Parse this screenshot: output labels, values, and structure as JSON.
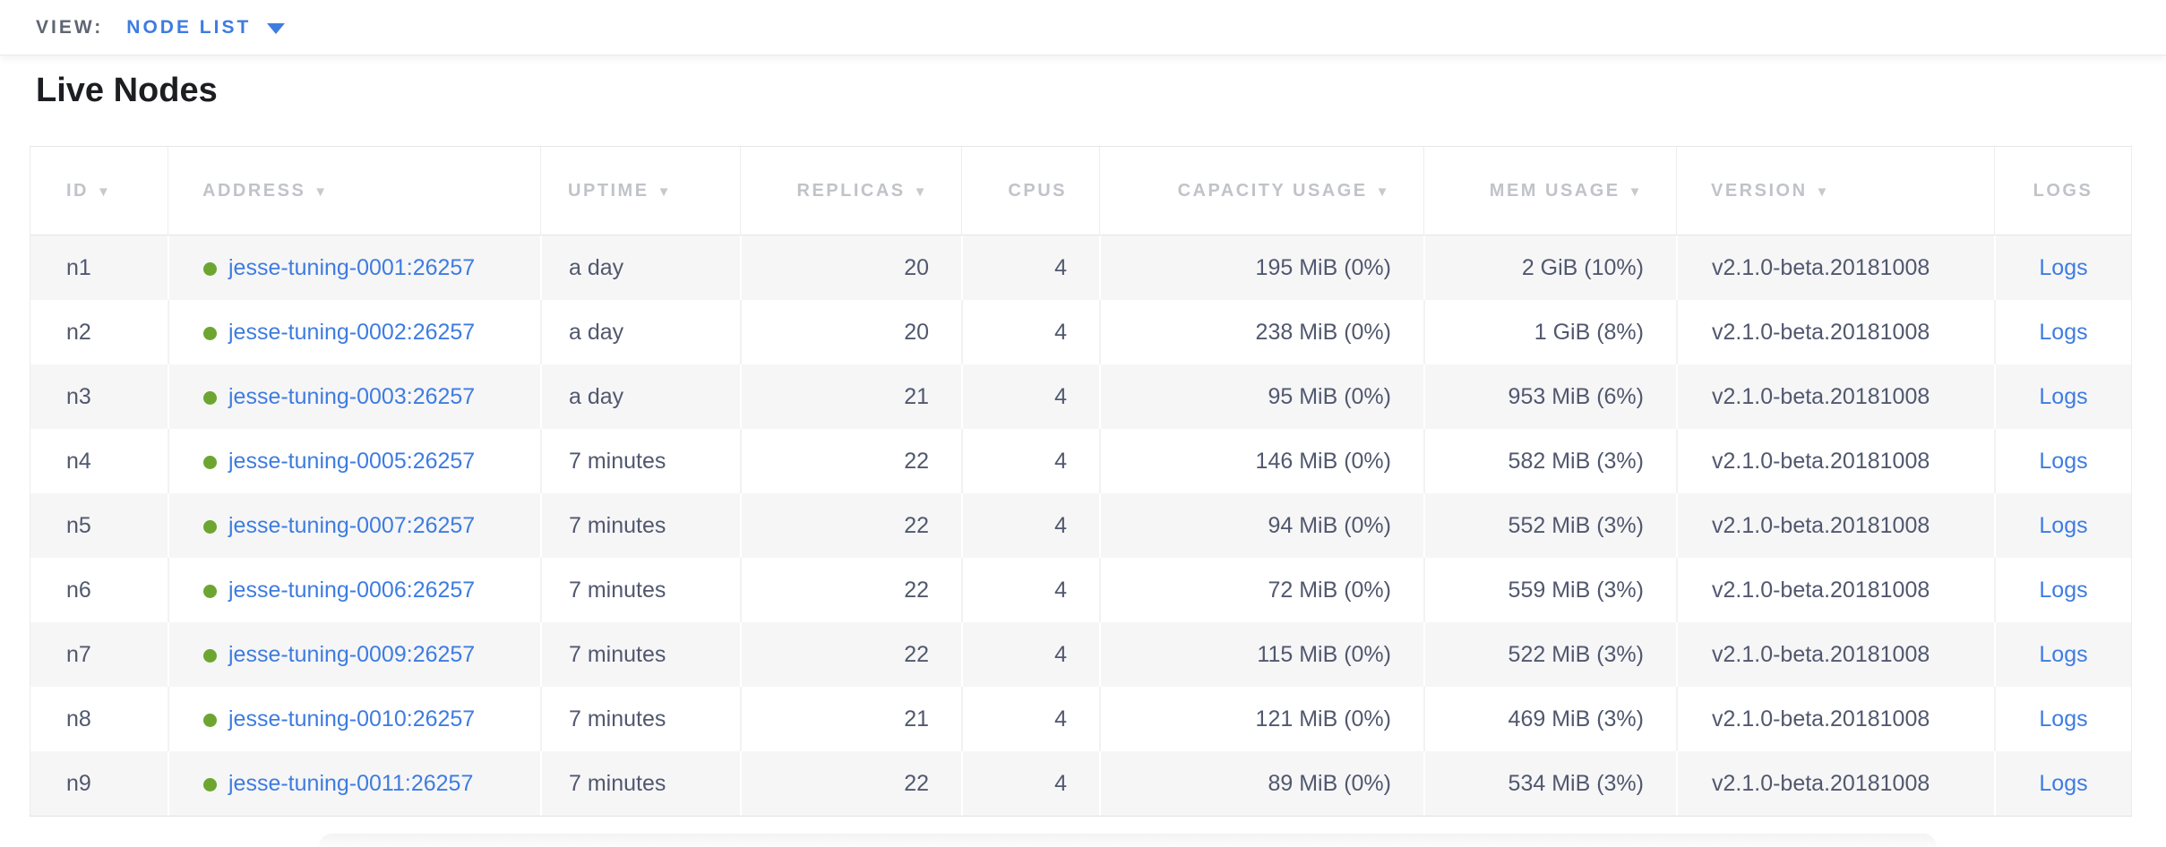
{
  "view_bar": {
    "label": "VIEW:",
    "selected": "NODE LIST",
    "dropdown_icon": "caret-down"
  },
  "page": {
    "title": "Live Nodes"
  },
  "colors": {
    "link": "#3e7ce0",
    "status_dot_green": "#6ca631",
    "cell_text": "#51586e",
    "header_text": "#c0c3c8",
    "row_stripe": "#f6f6f7",
    "border": "#e7e7e7"
  },
  "table": {
    "columns": [
      {
        "label": "ID",
        "sort_arrow": true
      },
      {
        "label": "ADDRESS",
        "sort_arrow": true
      },
      {
        "label": "UPTIME",
        "sort_arrow": true
      },
      {
        "label": "REPLICAS",
        "sort_arrow": true
      },
      {
        "label": "CPUS",
        "sort_arrow": false
      },
      {
        "label": "CAPACITY USAGE",
        "sort_arrow": true
      },
      {
        "label": "MEM USAGE",
        "sort_arrow": true
      },
      {
        "label": "VERSION",
        "sort_arrow": true
      },
      {
        "label": "LOGS",
        "sort_arrow": false
      }
    ],
    "rows": [
      {
        "id": "n1",
        "address": "jesse-tuning-0001:26257",
        "uptime": "a day",
        "replicas": "20",
        "cpus": "4",
        "capacity_usage": "195 MiB (0%)",
        "mem_usage": "2 GiB (10%)",
        "version": "v2.1.0-beta.20181008",
        "logs": "Logs"
      },
      {
        "id": "n2",
        "address": "jesse-tuning-0002:26257",
        "uptime": "a day",
        "replicas": "20",
        "cpus": "4",
        "capacity_usage": "238 MiB (0%)",
        "mem_usage": "1 GiB (8%)",
        "version": "v2.1.0-beta.20181008",
        "logs": "Logs"
      },
      {
        "id": "n3",
        "address": "jesse-tuning-0003:26257",
        "uptime": "a day",
        "replicas": "21",
        "cpus": "4",
        "capacity_usage": "95 MiB (0%)",
        "mem_usage": "953 MiB (6%)",
        "version": "v2.1.0-beta.20181008",
        "logs": "Logs"
      },
      {
        "id": "n4",
        "address": "jesse-tuning-0005:26257",
        "uptime": "7 minutes",
        "replicas": "22",
        "cpus": "4",
        "capacity_usage": "146 MiB (0%)",
        "mem_usage": "582 MiB (3%)",
        "version": "v2.1.0-beta.20181008",
        "logs": "Logs"
      },
      {
        "id": "n5",
        "address": "jesse-tuning-0007:26257",
        "uptime": "7 minutes",
        "replicas": "22",
        "cpus": "4",
        "capacity_usage": "94 MiB (0%)",
        "mem_usage": "552 MiB (3%)",
        "version": "v2.1.0-beta.20181008",
        "logs": "Logs"
      },
      {
        "id": "n6",
        "address": "jesse-tuning-0006:26257",
        "uptime": "7 minutes",
        "replicas": "22",
        "cpus": "4",
        "capacity_usage": "72 MiB (0%)",
        "mem_usage": "559 MiB (3%)",
        "version": "v2.1.0-beta.20181008",
        "logs": "Logs"
      },
      {
        "id": "n7",
        "address": "jesse-tuning-0009:26257",
        "uptime": "7 minutes",
        "replicas": "22",
        "cpus": "4",
        "capacity_usage": "115 MiB (0%)",
        "mem_usage": "522 MiB (3%)",
        "version": "v2.1.0-beta.20181008",
        "logs": "Logs"
      },
      {
        "id": "n8",
        "address": "jesse-tuning-0010:26257",
        "uptime": "7 minutes",
        "replicas": "21",
        "cpus": "4",
        "capacity_usage": "121 MiB (0%)",
        "mem_usage": "469 MiB (3%)",
        "version": "v2.1.0-beta.20181008",
        "logs": "Logs"
      },
      {
        "id": "n9",
        "address": "jesse-tuning-0011:26257",
        "uptime": "7 minutes",
        "replicas": "22",
        "cpus": "4",
        "capacity_usage": "89 MiB (0%)",
        "mem_usage": "534 MiB (3%)",
        "version": "v2.1.0-beta.20181008",
        "logs": "Logs"
      }
    ]
  }
}
